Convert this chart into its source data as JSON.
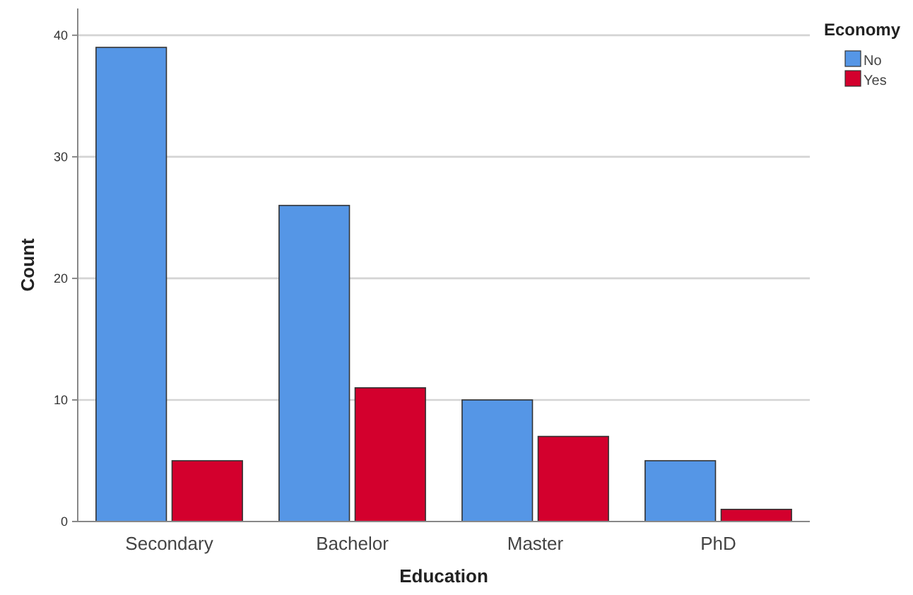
{
  "chart_data": {
    "type": "bar",
    "xlabel": "Education",
    "ylabel": "Count",
    "legend_title": "Economy",
    "categories": [
      "Secondary",
      "Bachelor",
      "Master",
      "PhD"
    ],
    "series": [
      {
        "name": "No",
        "color": "#5596e6",
        "values": [
          39,
          26,
          10,
          5
        ]
      },
      {
        "name": "Yes",
        "color": "#d3002d",
        "values": [
          5,
          11,
          7,
          1
        ]
      }
    ],
    "ylim": [
      0,
      42.2
    ],
    "yticks": [
      0,
      10,
      20,
      30,
      40
    ],
    "grid": "y",
    "legend": "top right"
  }
}
